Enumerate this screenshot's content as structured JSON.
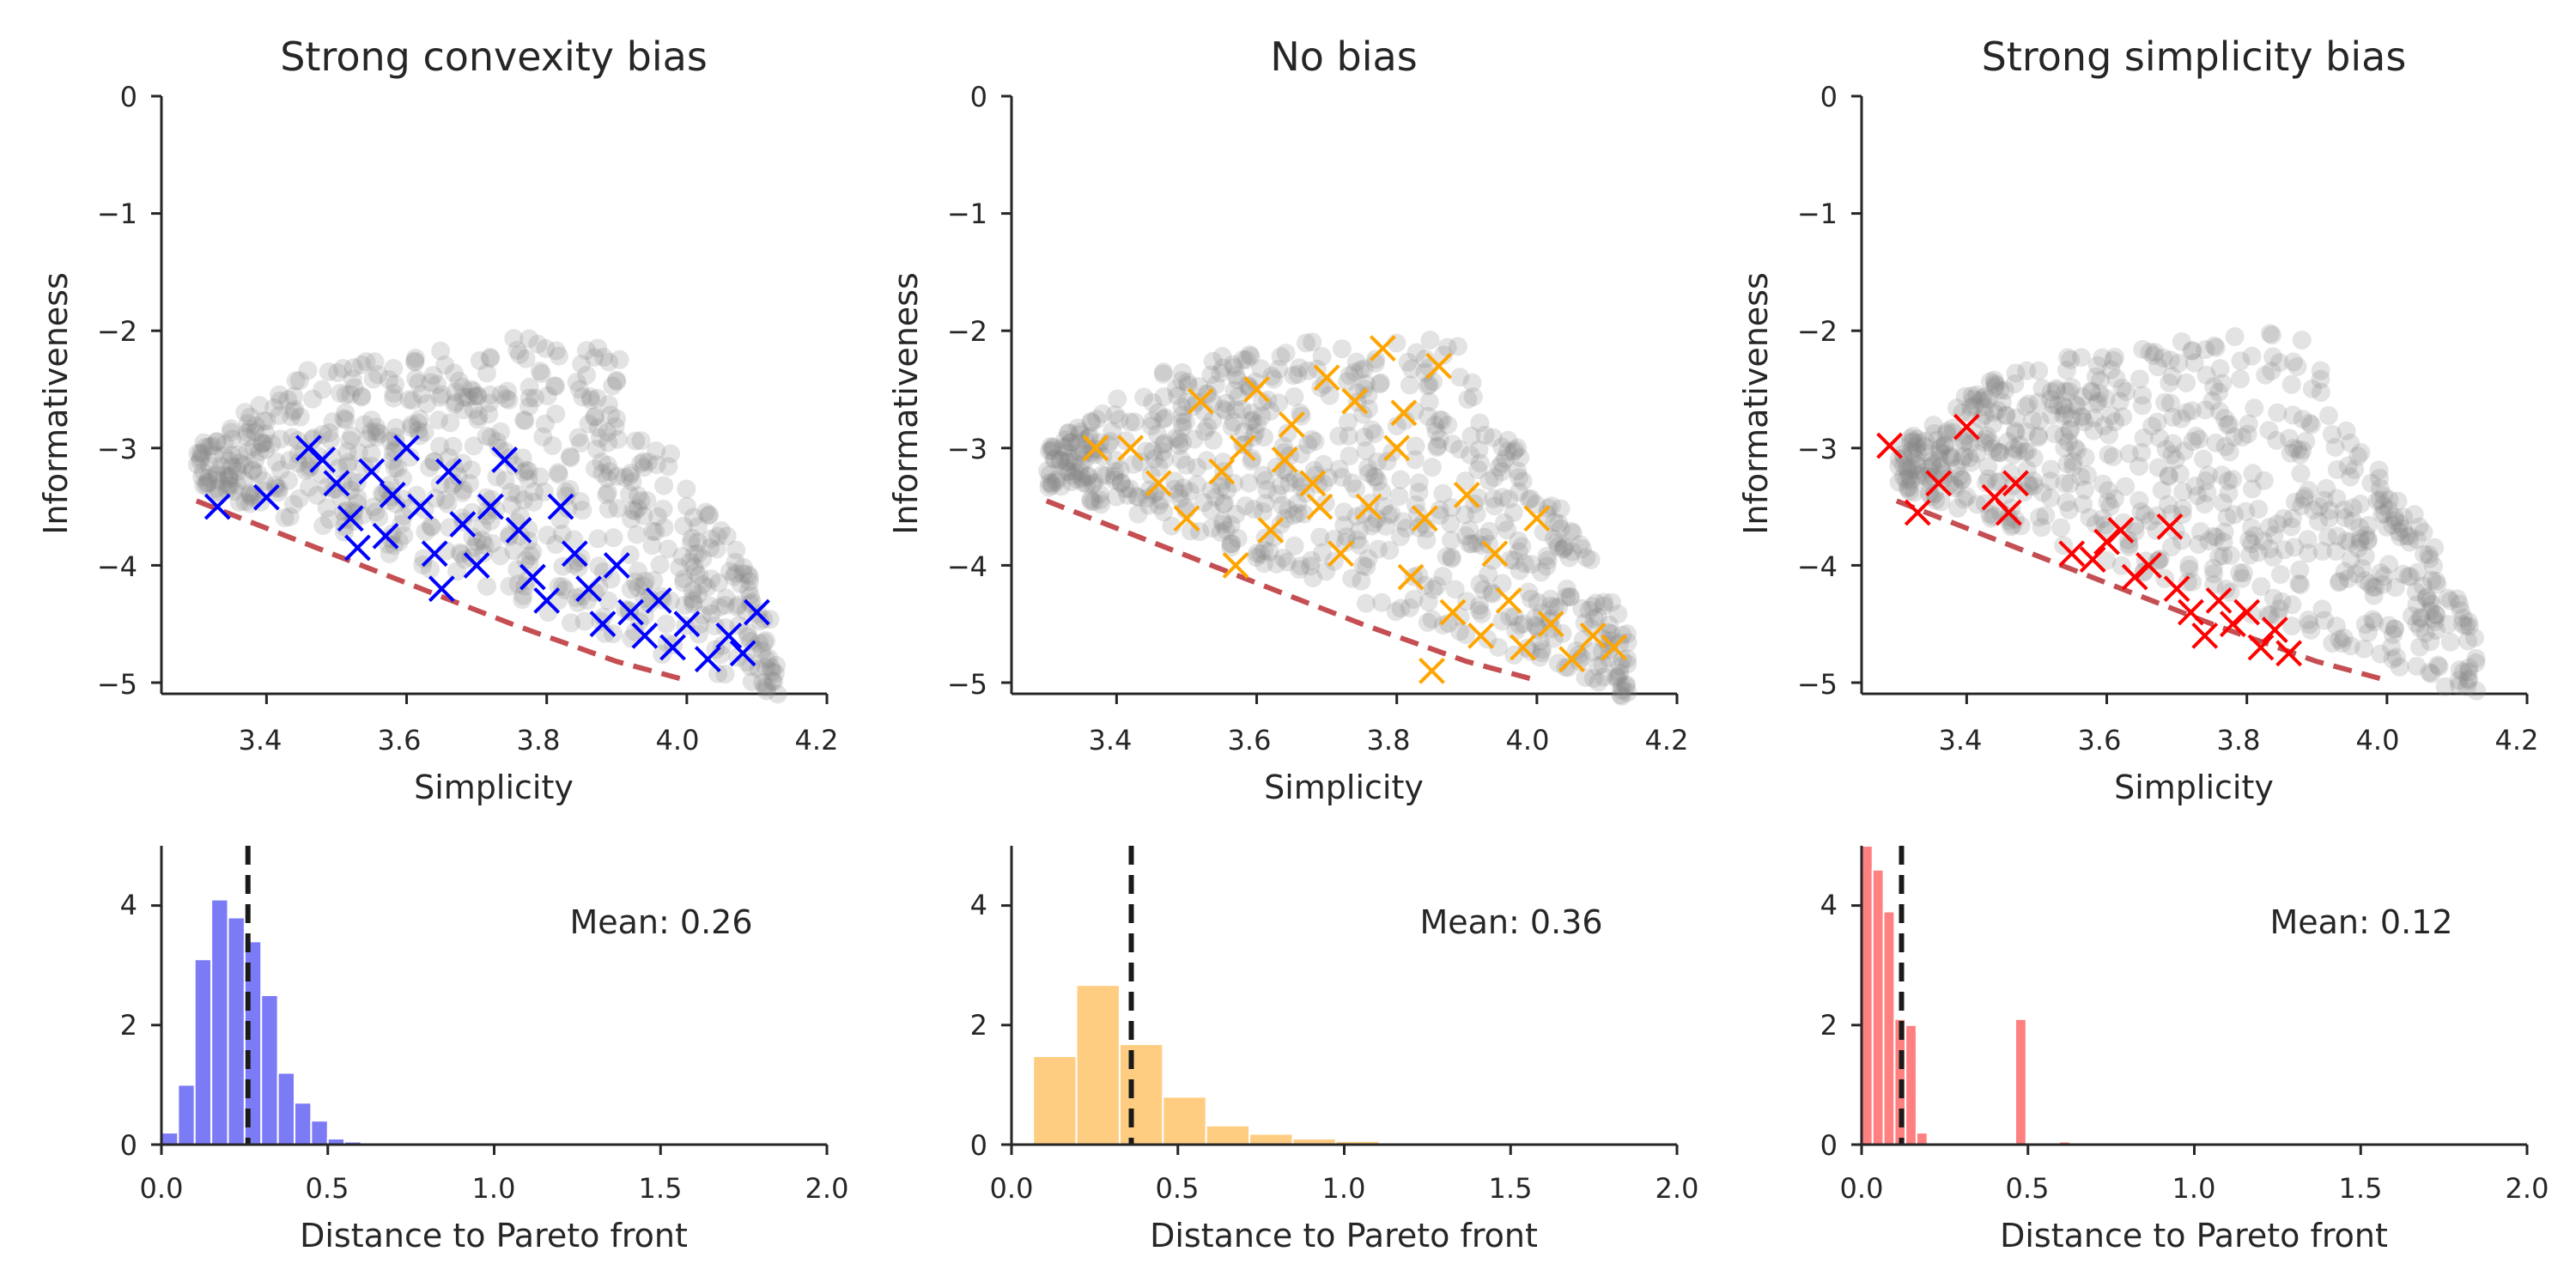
{
  "chart_data": [
    {
      "type": "scatter",
      "title": "Strong convexity bias",
      "xlabel": "Simplicity",
      "ylabel": "Informativeness",
      "xlim": [
        3.25,
        4.2
      ],
      "ylim": [
        -5.1,
        0
      ],
      "xticks": [
        "3.4",
        "3.6",
        "3.8",
        "4.0",
        "4.2"
      ],
      "yticks": [
        "0",
        "−1",
        "−2",
        "−3",
        "−4",
        "−5"
      ],
      "grid": false,
      "colors": {
        "background": "#808080",
        "highlight": "#0000ff",
        "pareto": "#c44e52"
      },
      "pareto_front": {
        "x": [
          3.3,
          3.45,
          3.6,
          3.75,
          3.9,
          4.0
        ],
        "y": [
          -3.45,
          -3.8,
          -4.15,
          -4.5,
          -4.82,
          -4.98
        ]
      },
      "highlighted": [
        {
          "x": 3.33,
          "y": -3.5
        },
        {
          "x": 3.4,
          "y": -3.42
        },
        {
          "x": 3.46,
          "y": -3.0
        },
        {
          "x": 3.48,
          "y": -3.1
        },
        {
          "x": 3.5,
          "y": -3.3
        },
        {
          "x": 3.52,
          "y": -3.6
        },
        {
          "x": 3.55,
          "y": -3.2
        },
        {
          "x": 3.57,
          "y": -3.75
        },
        {
          "x": 3.6,
          "y": -3.0
        },
        {
          "x": 3.62,
          "y": -3.5
        },
        {
          "x": 3.64,
          "y": -3.9
        },
        {
          "x": 3.66,
          "y": -3.2
        },
        {
          "x": 3.68,
          "y": -3.65
        },
        {
          "x": 3.7,
          "y": -4.0
        },
        {
          "x": 3.72,
          "y": -3.5
        },
        {
          "x": 3.74,
          "y": -3.1
        },
        {
          "x": 3.76,
          "y": -3.7
        },
        {
          "x": 3.78,
          "y": -4.1
        },
        {
          "x": 3.8,
          "y": -4.3
        },
        {
          "x": 3.82,
          "y": -3.5
        },
        {
          "x": 3.84,
          "y": -3.9
        },
        {
          "x": 3.86,
          "y": -4.2
        },
        {
          "x": 3.88,
          "y": -4.5
        },
        {
          "x": 3.9,
          "y": -4.0
        },
        {
          "x": 3.92,
          "y": -4.4
        },
        {
          "x": 3.94,
          "y": -4.6
        },
        {
          "x": 3.96,
          "y": -4.3
        },
        {
          "x": 3.98,
          "y": -4.7
        },
        {
          "x": 4.0,
          "y": -4.5
        },
        {
          "x": 4.03,
          "y": -4.8
        },
        {
          "x": 4.06,
          "y": -4.6
        },
        {
          "x": 4.08,
          "y": -4.75
        },
        {
          "x": 4.1,
          "y": -4.4
        },
        {
          "x": 3.58,
          "y": -3.4
        },
        {
          "x": 3.65,
          "y": -4.2
        },
        {
          "x": 3.53,
          "y": -3.85
        }
      ]
    },
    {
      "type": "scatter",
      "title": "No bias",
      "xlabel": "Simplicity",
      "ylabel": "Informativeness",
      "xlim": [
        3.25,
        4.2
      ],
      "ylim": [
        -5.1,
        0
      ],
      "xticks": [
        "3.4",
        "3.6",
        "3.8",
        "4.0",
        "4.2"
      ],
      "yticks": [
        "0",
        "−1",
        "−2",
        "−3",
        "−4",
        "−5"
      ],
      "grid": false,
      "colors": {
        "background": "#808080",
        "highlight": "#ffa500",
        "pareto": "#c44e52"
      },
      "pareto_front": {
        "x": [
          3.3,
          3.45,
          3.6,
          3.75,
          3.9,
          4.0
        ],
        "y": [
          -3.45,
          -3.8,
          -4.15,
          -4.5,
          -4.82,
          -4.98
        ]
      },
      "highlighted": [
        {
          "x": 3.37,
          "y": -3.0
        },
        {
          "x": 3.42,
          "y": -3.0
        },
        {
          "x": 3.46,
          "y": -3.3
        },
        {
          "x": 3.5,
          "y": -3.6
        },
        {
          "x": 3.52,
          "y": -2.6
        },
        {
          "x": 3.55,
          "y": -3.2
        },
        {
          "x": 3.58,
          "y": -3.0
        },
        {
          "x": 3.6,
          "y": -2.5
        },
        {
          "x": 3.62,
          "y": -3.7
        },
        {
          "x": 3.65,
          "y": -2.8
        },
        {
          "x": 3.68,
          "y": -3.3
        },
        {
          "x": 3.7,
          "y": -2.4
        },
        {
          "x": 3.72,
          "y": -3.9
        },
        {
          "x": 3.74,
          "y": -2.6
        },
        {
          "x": 3.76,
          "y": -3.5
        },
        {
          "x": 3.78,
          "y": -2.15
        },
        {
          "x": 3.8,
          "y": -3.0
        },
        {
          "x": 3.82,
          "y": -4.1
        },
        {
          "x": 3.84,
          "y": -3.6
        },
        {
          "x": 3.86,
          "y": -2.3
        },
        {
          "x": 3.88,
          "y": -4.4
        },
        {
          "x": 3.9,
          "y": -3.4
        },
        {
          "x": 3.92,
          "y": -4.6
        },
        {
          "x": 3.94,
          "y": -3.9
        },
        {
          "x": 3.96,
          "y": -4.3
        },
        {
          "x": 3.98,
          "y": -4.7
        },
        {
          "x": 4.0,
          "y": -3.6
        },
        {
          "x": 4.02,
          "y": -4.5
        },
        {
          "x": 4.05,
          "y": -4.8
        },
        {
          "x": 4.08,
          "y": -4.6
        },
        {
          "x": 4.11,
          "y": -4.7
        },
        {
          "x": 3.64,
          "y": -3.1
        },
        {
          "x": 3.81,
          "y": -2.7
        },
        {
          "x": 3.69,
          "y": -3.5
        },
        {
          "x": 3.85,
          "y": -4.9
        },
        {
          "x": 3.57,
          "y": -4.0
        }
      ]
    },
    {
      "type": "scatter",
      "title": "Strong simplicity bias",
      "xlabel": "Simplicity",
      "ylabel": "Informativeness",
      "xlim": [
        3.25,
        4.2
      ],
      "ylim": [
        -5.1,
        0
      ],
      "xticks": [
        "3.4",
        "3.6",
        "3.8",
        "4.0",
        "4.2"
      ],
      "yticks": [
        "0",
        "−1",
        "−2",
        "−3",
        "−4",
        "−5"
      ],
      "grid": false,
      "colors": {
        "background": "#808080",
        "highlight": "#ff0000",
        "pareto": "#c44e52"
      },
      "pareto_front": {
        "x": [
          3.3,
          3.45,
          3.6,
          3.75,
          3.9,
          4.0
        ],
        "y": [
          -3.45,
          -3.8,
          -4.15,
          -4.5,
          -4.82,
          -4.98
        ]
      },
      "highlighted": [
        {
          "x": 3.29,
          "y": -2.98
        },
        {
          "x": 3.33,
          "y": -3.55
        },
        {
          "x": 3.36,
          "y": -3.3
        },
        {
          "x": 3.4,
          "y": -2.82
        },
        {
          "x": 3.44,
          "y": -3.42
        },
        {
          "x": 3.46,
          "y": -3.55
        },
        {
          "x": 3.47,
          "y": -3.3
        },
        {
          "x": 3.55,
          "y": -3.9
        },
        {
          "x": 3.58,
          "y": -3.95
        },
        {
          "x": 3.6,
          "y": -3.8
        },
        {
          "x": 3.62,
          "y": -3.7
        },
        {
          "x": 3.64,
          "y": -4.1
        },
        {
          "x": 3.66,
          "y": -4.0
        },
        {
          "x": 3.69,
          "y": -3.67
        },
        {
          "x": 3.7,
          "y": -4.2
        },
        {
          "x": 3.72,
          "y": -4.4
        },
        {
          "x": 3.74,
          "y": -4.6
        },
        {
          "x": 3.76,
          "y": -4.3
        },
        {
          "x": 3.78,
          "y": -4.5
        },
        {
          "x": 3.8,
          "y": -4.4
        },
        {
          "x": 3.82,
          "y": -4.7
        },
        {
          "x": 3.84,
          "y": -4.55
        },
        {
          "x": 3.86,
          "y": -4.75
        }
      ]
    },
    {
      "type": "bar",
      "xlabel": "Distance to Pareto front",
      "ylabel": "",
      "xlim": [
        0,
        2.0
      ],
      "ylim": [
        0,
        5
      ],
      "xticks": [
        "0.0",
        "0.5",
        "1.0",
        "1.5",
        "2.0"
      ],
      "yticks": [
        "0",
        "2",
        "4"
      ],
      "bin_edges": [
        0.0,
        0.05,
        0.1,
        0.15,
        0.2,
        0.25,
        0.3,
        0.35,
        0.4,
        0.45,
        0.5,
        0.55,
        0.6
      ],
      "values": [
        0.2,
        1.0,
        3.1,
        4.1,
        3.8,
        3.4,
        2.5,
        1.2,
        0.7,
        0.4,
        0.1,
        0.05
      ],
      "mean": 0.26,
      "mean_label": "Mean: 0.26",
      "color": "#7b7bf5"
    },
    {
      "type": "bar",
      "xlabel": "Distance to Pareto front",
      "ylabel": "",
      "xlim": [
        0,
        2.0
      ],
      "ylim": [
        0,
        5
      ],
      "xticks": [
        "0.0",
        "0.5",
        "1.0",
        "1.5",
        "2.0"
      ],
      "yticks": [
        "0",
        "2",
        "4"
      ],
      "bin_edges": [
        0.065,
        0.195,
        0.325,
        0.455,
        0.585,
        0.715,
        0.845,
        0.975,
        1.105,
        1.235
      ],
      "values": [
        1.48,
        2.67,
        1.68,
        0.8,
        0.32,
        0.18,
        0.1,
        0.06,
        0.03
      ],
      "mean": 0.36,
      "mean_label": "Mean: 0.36",
      "color": "#ffcd82"
    },
    {
      "type": "bar",
      "xlabel": "Distance to Pareto front",
      "ylabel": "",
      "xlim": [
        0,
        2.0
      ],
      "ylim": [
        0,
        5
      ],
      "xticks": [
        "0.0",
        "0.5",
        "1.0",
        "1.5",
        "2.0"
      ],
      "yticks": [
        "0",
        "2",
        "4"
      ],
      "bin_edges": [
        0.0,
        0.033,
        0.066,
        0.099,
        0.132,
        0.165,
        0.198,
        0.231,
        0.264,
        0.297,
        0.33,
        0.363,
        0.396,
        0.429,
        0.462,
        0.495,
        0.528,
        0.561,
        0.594,
        0.627
      ],
      "values": [
        5.0,
        4.6,
        3.9,
        2.1,
        2.0,
        0.2,
        0,
        0,
        0,
        0,
        0,
        0,
        0,
        0,
        2.1,
        0,
        0,
        0,
        0.05
      ],
      "mean": 0.12,
      "mean_label": "Mean: 0.12",
      "color": "#ff8080"
    }
  ]
}
